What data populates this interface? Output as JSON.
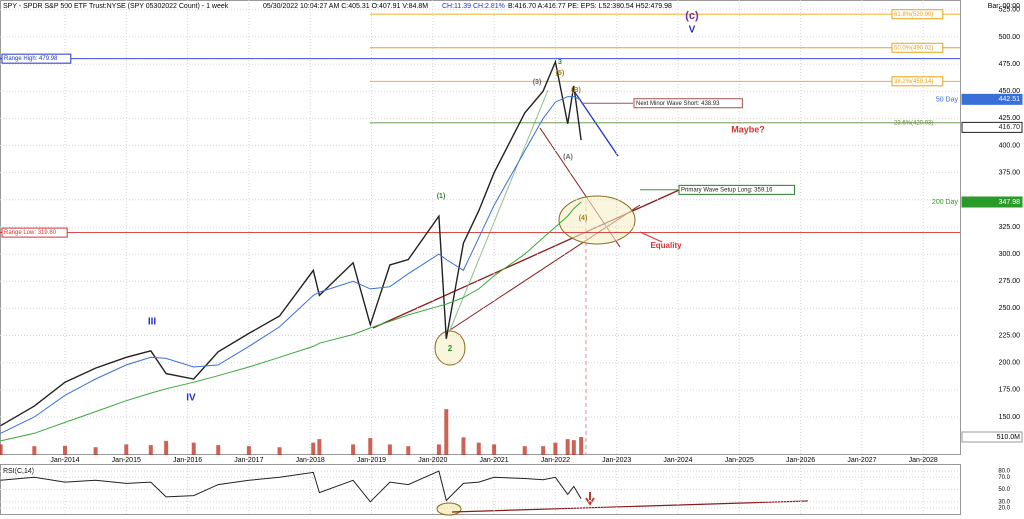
{
  "header": {
    "title": "SPY - SPDR S&P 500 ETF Trust:NYSE (SPY 05302022 Count) - 1 week",
    "quote": "05/30/2022 10:04:27 AM C:405.31 O:407.91 V:84.8M",
    "change": "CH:11.39 CH:2.81%",
    "rest": "B:416.70 A:416.77 PE: EPS: L52:380.54 H52:479.98",
    "bar": "Bar: 00:00"
  },
  "chart_data": {
    "type": "line",
    "x": [
      2012.95,
      2013.5,
      2014.0,
      2014.5,
      2015.0,
      2015.4,
      2015.65,
      2016.1,
      2016.5,
      2017.0,
      2017.5,
      2018.05,
      2018.15,
      2018.7,
      2018.98,
      2019.3,
      2019.6,
      2020.1,
      2020.22,
      2020.5,
      2020.75,
      2021.0,
      2021.5,
      2021.8,
      2022.0,
      2022.2,
      2022.3,
      2022.42
    ],
    "series": [
      {
        "name": "SPY",
        "color": "#222222",
        "values": [
          142,
          160,
          182,
          195,
          205,
          211,
          190,
          185,
          210,
          227,
          243,
          285,
          262,
          292,
          235,
          290,
          295,
          335,
          222,
          310,
          340,
          375,
          430,
          450,
          477,
          420,
          455,
          405
        ]
      },
      {
        "name": "50 Day",
        "color": "#3a6fd8",
        "values": [
          135,
          150,
          170,
          185,
          198,
          205,
          204,
          196,
          198,
          215,
          233,
          262,
          265,
          275,
          268,
          270,
          282,
          300,
          295,
          285,
          315,
          345,
          395,
          425,
          440,
          445,
          445,
          442
        ]
      },
      {
        "name": "200 Day",
        "color": "#3aa83a",
        "values": [
          128,
          135,
          145,
          155,
          165,
          172,
          176,
          182,
          188,
          196,
          205,
          215,
          218,
          226,
          232,
          238,
          244,
          252,
          254,
          260,
          268,
          280,
          300,
          315,
          325,
          335,
          342,
          348
        ]
      }
    ],
    "xlim": [
      2012.94,
      2028.6
    ],
    "xticks": [
      {
        "value": 2014,
        "label": "Jan-2014"
      },
      {
        "value": 2015,
        "label": "Jan-2015"
      },
      {
        "value": 2016,
        "label": "Jan-2016"
      },
      {
        "value": 2017,
        "label": "Jan-2017"
      },
      {
        "value": 2018,
        "label": "Jan-2018"
      },
      {
        "value": 2019,
        "label": "Jan-2019"
      },
      {
        "value": 2020,
        "label": "Jan-2020"
      },
      {
        "value": 2021,
        "label": "Jan-2021"
      },
      {
        "value": 2022,
        "label": "Jan-2022"
      },
      {
        "value": 2023,
        "label": "Jan-2023"
      },
      {
        "value": 2024,
        "label": "Jan-2024"
      },
      {
        "value": 2025,
        "label": "Jan-2025"
      },
      {
        "value": 2026,
        "label": "Jan-2026"
      },
      {
        "value": 2027,
        "label": "Jan-2027"
      },
      {
        "value": 2028,
        "label": "Jan-2028"
      }
    ],
    "ylim": [
      115,
      534
    ],
    "yticks": [
      {
        "value": 150,
        "label": "150.00"
      },
      {
        "value": 175,
        "label": "175.00"
      },
      {
        "value": 200,
        "label": "200.00"
      },
      {
        "value": 225,
        "label": "225.00"
      },
      {
        "value": 250,
        "label": "250.00"
      },
      {
        "value": 275,
        "label": "275.00"
      },
      {
        "value": 300,
        "label": "300.00"
      },
      {
        "value": 325,
        "label": "325.00"
      },
      {
        "value": 350,
        "label": "350.00"
      },
      {
        "value": 375,
        "label": "375.00"
      },
      {
        "value": 400,
        "label": "400.00"
      },
      {
        "value": 425,
        "label": "425.00"
      },
      {
        "value": 450,
        "label": "450.00"
      },
      {
        "value": 475,
        "label": "475.00"
      },
      {
        "value": 500,
        "label": "500.00"
      },
      {
        "value": 525,
        "label": "525.00"
      }
    ],
    "grid": true,
    "levels": [
      {
        "label": "61.8%(520.90)",
        "value": 520.9,
        "color": "#e8a317"
      },
      {
        "label": "50.0%(490.02)",
        "value": 490.02,
        "color": "#e8a317"
      },
      {
        "label": "38.2%(459.14)",
        "value": 459.14,
        "color": "#e8a317"
      },
      {
        "label": "23.6%(420.93)",
        "value": 420.93,
        "color": "#5e8a3a"
      },
      {
        "label": "Range High: 479.98",
        "value": 479.98,
        "color": "#2233cc"
      },
      {
        "label": "Range Low: 319.80",
        "value": 319.8,
        "color": "#d33333"
      },
      {
        "label": "Next Minor Wave Short: 438.93",
        "value": 438.93,
        "color": "#a05050"
      },
      {
        "label": "Primary Wave Setup Long: 359.16",
        "value": 359.16,
        "color": "#2a7a2a"
      }
    ],
    "price_tags": [
      {
        "value": 442.51,
        "label": "442.51",
        "color": "#3a6fd8"
      },
      {
        "value": 416.7,
        "label": "416.70",
        "color": "#222222"
      },
      {
        "value": 347.98,
        "label": "347.98",
        "color": "#2a9a2a"
      }
    ],
    "ma_labels": [
      "50 Day",
      "200 Day"
    ],
    "annotations": [
      "(c)",
      "V",
      "Maybe?",
      "Equality",
      "III",
      "IV",
      "(3)",
      "(5)",
      "3",
      "(B)",
      "(A)",
      "2",
      "(1)",
      "(4)"
    ],
    "volume": {
      "values": [
        300,
        250,
        260,
        220,
        300,
        280,
        400,
        350,
        280,
        250,
        220,
        350,
        450,
        300,
        480,
        300,
        250,
        300,
        1300,
        500,
        350,
        300,
        250,
        250,
        350,
        450,
        420,
        510
      ],
      "tag": {
        "value": 510,
        "label": "510.0M"
      },
      "color": "#c0392b"
    },
    "rsi": {
      "label": "RSI(C,14)",
      "values": [
        65,
        70,
        62,
        65,
        60,
        62,
        38,
        40,
        58,
        65,
        70,
        78,
        45,
        65,
        30,
        62,
        58,
        80,
        32,
        60,
        62,
        70,
        68,
        66,
        70,
        42,
        55,
        35
      ],
      "ylim": [
        10,
        90
      ],
      "yticks": [
        {
          "value": 20,
          "label": "20.0"
        },
        {
          "value": 30,
          "label": "30.0"
        },
        {
          "value": 50,
          "label": "50.0"
        },
        {
          "value": 70,
          "label": "70.0"
        },
        {
          "value": 80,
          "label": "80.0"
        }
      ],
      "color": "#222222"
    }
  }
}
